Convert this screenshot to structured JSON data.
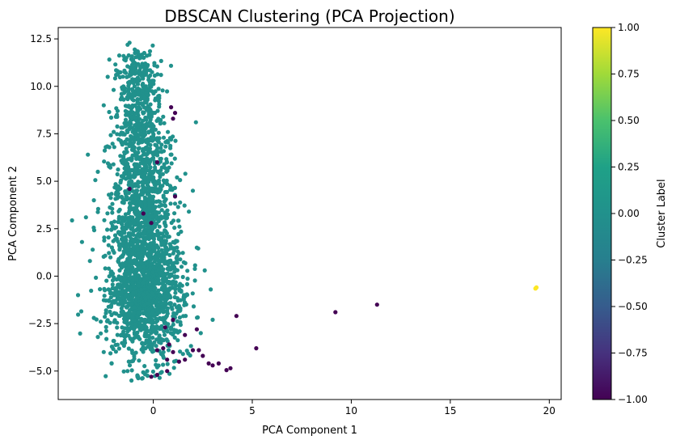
{
  "chart_data": {
    "type": "scatter",
    "title": "DBSCAN Clustering (PCA Projection)",
    "xlabel": "PCA Component 1",
    "ylabel": "PCA Component 2",
    "xlim": [
      -4.8,
      20.6
    ],
    "ylim": [
      -6.5,
      13.1
    ],
    "xticks": [
      0,
      5,
      10,
      15,
      20
    ],
    "yticks": [
      -5.0,
      -2.5,
      0.0,
      2.5,
      5.0,
      7.5,
      10.0,
      12.5
    ],
    "xtick_labels": [
      "0",
      "5",
      "10",
      "15",
      "20"
    ],
    "ytick_labels": [
      "−5.0",
      "−2.5",
      "0.0",
      "2.5",
      "5.0",
      "7.5",
      "10.0",
      "12.5"
    ],
    "colorbar": {
      "label": "Cluster Label",
      "vmin": -1.0,
      "vmax": 1.0,
      "ticks": [
        1.0,
        0.75,
        0.5,
        0.25,
        0.0,
        -0.25,
        -0.5,
        -0.75,
        -1.0
      ],
      "tick_labels": [
        "1.00",
        "0.75",
        "0.50",
        "0.25",
        "0.00",
        "−0.25",
        "−0.50",
        "−0.75",
        "−1.00"
      ],
      "colormap": "viridis"
    },
    "cluster_colors": {
      "-1": "#440154",
      "0": "#21918c",
      "1": "#fde725"
    },
    "series": [
      {
        "cluster": 0,
        "points_description": "dense cloud centered near (-0.5, 0.5); vertical spread approx -5.5 to 12.3, horizontal spread approx -3.8 to 3.5",
        "points": [
          [
            -1.2,
            12.3
          ],
          [
            -0.9,
            11.9
          ],
          [
            -1.5,
            11.6
          ],
          [
            -0.4,
            11.2
          ],
          [
            -1.8,
            10.8
          ],
          [
            -2.3,
            10.5
          ],
          [
            -1.0,
            10.2
          ],
          [
            -0.2,
            9.8
          ],
          [
            0.3,
            9.5
          ],
          [
            -2.5,
            9.0
          ],
          [
            -1.4,
            8.7
          ],
          [
            0.5,
            8.4
          ],
          [
            -0.7,
            8.0
          ],
          [
            -2.0,
            7.6
          ],
          [
            0.9,
            7.2
          ],
          [
            -2.4,
            6.8
          ],
          [
            -3.3,
            6.4
          ],
          [
            -1.1,
            6.1
          ],
          [
            0.6,
            5.7
          ],
          [
            -2.8,
            5.5
          ],
          [
            1.2,
            5.2
          ],
          [
            2.0,
            4.5
          ],
          [
            -3.0,
            4.0
          ],
          [
            -3.4,
            3.1
          ],
          [
            1.8,
            3.4
          ],
          [
            -3.6,
            1.8
          ],
          [
            2.2,
            1.5
          ],
          [
            -3.2,
            0.8
          ],
          [
            2.6,
            0.3
          ],
          [
            -3.8,
            -1.0
          ],
          [
            2.9,
            -0.7
          ],
          [
            -3.0,
            -2.2
          ],
          [
            3.0,
            -2.3
          ],
          [
            -2.8,
            -3.2
          ],
          [
            2.4,
            -3.0
          ],
          [
            -2.5,
            -4.0
          ],
          [
            1.5,
            -4.1
          ],
          [
            -2.1,
            -4.6
          ],
          [
            -1.3,
            -5.0
          ],
          [
            -0.8,
            -5.3
          ],
          [
            -1.1,
            -5.5
          ],
          [
            0.2,
            -4.8
          ],
          [
            -0.5,
            0.5
          ],
          [
            -1.0,
            -0.5
          ],
          [
            0.0,
            1.5
          ],
          [
            -1.5,
            2.5
          ],
          [
            0.5,
            -1.5
          ],
          [
            -0.2,
            3.5
          ],
          [
            -1.2,
            -2.5
          ],
          [
            0.8,
            0.8
          ],
          [
            -0.6,
            4.5
          ],
          [
            -1.8,
            -1.2
          ],
          [
            0.3,
            -3.2
          ],
          [
            -0.9,
            6.5
          ],
          [
            -0.3,
            8.8
          ],
          [
            -1.6,
            9.6
          ]
        ]
      },
      {
        "cluster": -1,
        "points": [
          [
            19.3,
            -0.65
          ],
          [
            11.3,
            -1.5
          ],
          [
            9.2,
            -1.9
          ],
          [
            5.2,
            -3.8
          ],
          [
            4.2,
            -2.1
          ],
          [
            3.9,
            -4.85
          ],
          [
            3.7,
            -4.95
          ],
          [
            3.3,
            -4.6
          ],
          [
            3.0,
            -4.7
          ],
          [
            2.8,
            -4.6
          ],
          [
            2.5,
            -4.2
          ],
          [
            2.3,
            -3.9
          ],
          [
            2.0,
            -3.9
          ],
          [
            1.6,
            -4.4
          ],
          [
            1.3,
            -4.5
          ],
          [
            1.0,
            -4.0
          ],
          [
            0.8,
            -3.6
          ],
          [
            0.5,
            -3.8
          ],
          [
            0.2,
            -3.9
          ],
          [
            -0.1,
            -5.3
          ],
          [
            0.2,
            -5.2
          ],
          [
            0.7,
            -5.0
          ],
          [
            1.0,
            -2.3
          ],
          [
            0.6,
            -2.7
          ],
          [
            2.2,
            -2.8
          ],
          [
            0.9,
            8.9
          ],
          [
            1.1,
            8.6
          ],
          [
            1.0,
            8.3
          ],
          [
            1.1,
            4.2
          ],
          [
            0.2,
            6.0
          ],
          [
            -0.5,
            3.3
          ],
          [
            -0.1,
            2.8
          ],
          [
            -1.2,
            4.6
          ],
          [
            1.6,
            -3.1
          ],
          [
            0.7,
            -4.4
          ]
        ]
      },
      {
        "cluster": 1,
        "points": [
          [
            19.3,
            -0.65
          ],
          [
            19.35,
            -0.6
          ]
        ]
      }
    ]
  }
}
